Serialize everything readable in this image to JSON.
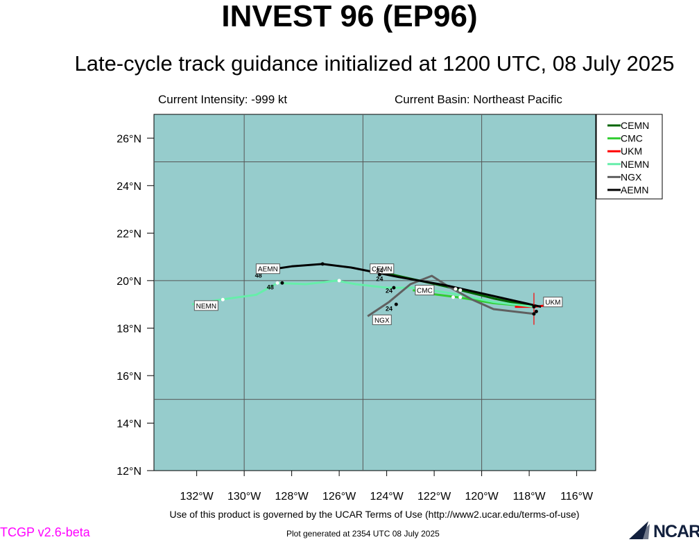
{
  "header": {
    "title": "INVEST 96 (EP96)",
    "subtitle": "Late-cycle track guidance initialized at 1200 UTC, 08 July 2025",
    "intensity": "Current Intensity: -999 kt",
    "basin": "Current Basin: Northeast Pacific"
  },
  "footer": {
    "terms": "Use of this product is governed by the UCAR Terms of Use (http://www2.ucar.edu/terms-of-use)",
    "generated": "Plot generated at 2354 UTC   08 July 2025",
    "version": "TCGP v2.6-beta",
    "logo_text": "NCAR"
  },
  "colors": {
    "map_fill": "#96cccc",
    "gridline": "#555555",
    "version_text": "#ff00ff"
  },
  "chart_data": {
    "type": "line",
    "xlabel": "",
    "ylabel": "",
    "xlim": [
      -133.8,
      -115.2
    ],
    "ylim": [
      12,
      27
    ],
    "x_ticks": [
      -132,
      -130,
      -128,
      -126,
      -124,
      -122,
      -120,
      -118,
      -116
    ],
    "x_tick_labels": [
      "132°W",
      "130°W",
      "128°W",
      "126°W",
      "124°W",
      "122°W",
      "120°W",
      "118°W",
      "116°W"
    ],
    "y_ticks": [
      12,
      14,
      16,
      18,
      20,
      22,
      24,
      26
    ],
    "y_tick_labels": [
      "12°N",
      "14°N",
      "16°N",
      "18°N",
      "20°N",
      "22°N",
      "24°N",
      "26°N"
    ],
    "gridlines_lon": [
      -130,
      -125,
      -120
    ],
    "gridlines_lat": [
      15,
      20,
      25
    ],
    "grid": true,
    "legend_position": "right",
    "series": [
      {
        "name": "CEMN",
        "color": "#006400",
        "points": [
          [
            -117.8,
            18.9
          ],
          [
            -119.5,
            19.25
          ],
          [
            -121.5,
            19.75
          ],
          [
            -123.3,
            20.15
          ],
          [
            -124.2,
            20.35
          ]
        ],
        "markers": [],
        "tau_labels": [],
        "label": {
          "text": "CEMN",
          "lon": -124.2,
          "lat": 20.5
        }
      },
      {
        "name": "CMC",
        "color": "#32cd32",
        "points": [
          [
            -117.8,
            18.9
          ],
          [
            -119.5,
            19.05
          ],
          [
            -121.0,
            19.3
          ],
          [
            -122.2,
            19.45
          ],
          [
            -122.9,
            19.6
          ]
        ],
        "markers": [
          [
            -121.2,
            19.3
          ],
          [
            -120.9,
            19.3
          ]
        ],
        "tau_labels": [],
        "label": {
          "text": "CMC",
          "lon": -122.4,
          "lat": 19.6
        }
      },
      {
        "name": "UKM",
        "color": "#ff0000",
        "points": [
          [
            -118.6,
            18.9
          ],
          [
            -117.8,
            18.9
          ],
          [
            -117.3,
            18.95
          ]
        ],
        "markers": [],
        "tau_labels": [],
        "label": {
          "text": "UKM",
          "lon": -117.0,
          "lat": 19.1
        }
      },
      {
        "name": "NEMN",
        "color": "#66eeaa",
        "points": [
          [
            -117.8,
            18.9
          ],
          [
            -119.5,
            19.1
          ],
          [
            -121.2,
            19.45
          ],
          [
            -122.8,
            19.7
          ],
          [
            -124.0,
            19.7
          ],
          [
            -125.3,
            19.85
          ],
          [
            -126.1,
            20.0
          ],
          [
            -127.4,
            19.85
          ],
          [
            -128.6,
            19.9
          ],
          [
            -129.5,
            19.4
          ],
          [
            -131.0,
            19.2
          ],
          [
            -132.2,
            19.0
          ]
        ],
        "markers": [
          [
            -121.1,
            19.65
          ],
          [
            -120.9,
            19.6
          ],
          [
            -126.0,
            20.0
          ],
          [
            -128.6,
            19.9
          ],
          [
            -130.9,
            19.2
          ]
        ],
        "tau_labels": [
          {
            "text": "48",
            "lon": -128.9,
            "lat": 19.75
          }
        ],
        "label": {
          "text": "NEMN",
          "lon": -131.6,
          "lat": 18.95
        }
      },
      {
        "name": "NGX",
        "color": "#606060",
        "points": [
          [
            -117.8,
            18.6
          ],
          [
            -119.5,
            18.8
          ],
          [
            -120.4,
            19.2
          ],
          [
            -121.4,
            19.75
          ],
          [
            -122.1,
            20.2
          ],
          [
            -123.0,
            19.85
          ],
          [
            -123.9,
            19.1
          ],
          [
            -124.8,
            18.5
          ]
        ],
        "markers": [
          [
            -117.8,
            18.6
          ],
          [
            -123.6,
            19.0
          ]
        ],
        "tau_labels": [
          {
            "text": "24",
            "lon": -123.9,
            "lat": 18.85
          }
        ],
        "label": {
          "text": "NGX",
          "lon": -124.2,
          "lat": 18.35
        }
      },
      {
        "name": "AEMN",
        "color": "#000000",
        "points": [
          [
            -117.5,
            18.9
          ],
          [
            -119.5,
            19.35
          ],
          [
            -121.5,
            19.8
          ],
          [
            -123.5,
            20.15
          ],
          [
            -125.5,
            20.55
          ],
          [
            -126.7,
            20.7
          ],
          [
            -128.0,
            20.6
          ],
          [
            -129.0,
            20.45
          ]
        ],
        "markers": [
          [
            -117.8,
            18.9
          ],
          [
            -117.7,
            18.7
          ],
          [
            -123.7,
            19.7
          ],
          [
            -124.3,
            20.25
          ],
          [
            -126.7,
            20.7
          ],
          [
            -128.4,
            19.9
          ]
        ],
        "tau_labels": [
          {
            "text": "48",
            "lon": -129.4,
            "lat": 20.25
          },
          {
            "text": "24",
            "lon": -124.3,
            "lat": 20.1
          },
          {
            "text": "24",
            "lon": -124.3,
            "lat": 20.45
          },
          {
            "text": "24",
            "lon": -123.9,
            "lat": 19.6
          }
        ],
        "label": {
          "text": "AEMN",
          "lon": -129.0,
          "lat": 20.5
        }
      }
    ],
    "current_position": {
      "lon": -117.8,
      "lat": 18.9
    }
  }
}
